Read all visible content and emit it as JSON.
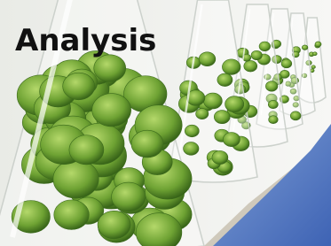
{
  "title": "Analysis"
}
